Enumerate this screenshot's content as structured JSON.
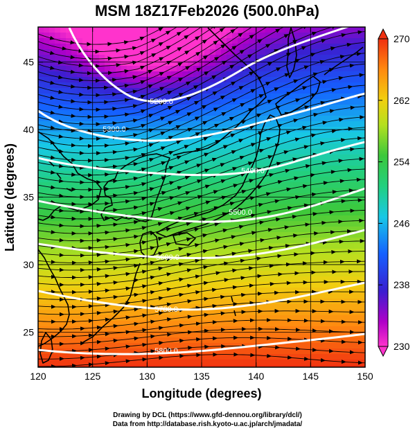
{
  "chart_data": {
    "type": "heatmap",
    "title": "MSM 18Z17Feb2026 (500.0hPa)",
    "xlabel": "Longitude (degrees)",
    "ylabel": "Latitude  (degrees)",
    "xlim": [
      120,
      150
    ],
    "ylim": [
      22.4,
      47.6
    ],
    "xticks": [
      120,
      125,
      130,
      135,
      140,
      145,
      150
    ],
    "yticks": [
      25,
      30,
      35,
      40,
      45
    ],
    "colorbar": {
      "min": 230,
      "max": 270,
      "ticks": [
        230,
        238,
        246,
        254,
        262,
        270
      ]
    },
    "contour_labels": [
      "5200.0",
      "5300.0",
      "5400.0",
      "5500.0",
      "5600.0",
      "5700.0",
      "5800.0"
    ],
    "overlays": [
      "temperature-shading",
      "wind-streamlines",
      "geopotential-height-contours",
      "coastlines"
    ]
  },
  "credits": {
    "line1": "Drawing by DCL (https://www.gfd-dennou.org/library/dcl/)",
    "line2": "Data from http://database.rish.kyoto-u.ac.jp/arch/jmadata/"
  }
}
